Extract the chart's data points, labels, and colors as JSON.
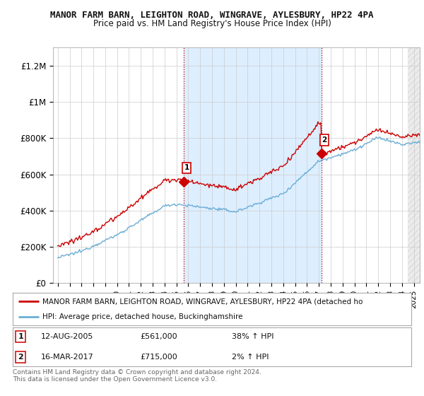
{
  "title": "MANOR FARM BARN, LEIGHTON ROAD, WINGRAVE, AYLESBURY, HP22 4PA",
  "subtitle": "Price paid vs. HM Land Registry's House Price Index (HPI)",
  "ylabel_ticks": [
    0,
    200000,
    400000,
    600000,
    800000,
    1000000,
    1200000
  ],
  "ylabel_labels": [
    "£0",
    "£200K",
    "£400K",
    "£600K",
    "£800K",
    "£1M",
    "£1.2M"
  ],
  "ylim": [
    0,
    1300000
  ],
  "xlim_start": 1994.6,
  "xlim_end": 2025.5,
  "red_color": "#cc0000",
  "blue_color": "#6baed6",
  "shade_color": "#ddeeff",
  "point1_x": 2005.617,
  "point1_y": 561000,
  "point2_x": 2017.208,
  "point2_y": 715000,
  "legend_red_text": "MANOR FARM BARN, LEIGHTON ROAD, WINGRAVE, AYLESBURY, HP22 4PA (detached ho",
  "legend_blue_text": "HPI: Average price, detached house, Buckinghamshire",
  "annotation1_date": "12-AUG-2005",
  "annotation1_price": "£561,000",
  "annotation1_hpi": "38% ↑ HPI",
  "annotation2_date": "16-MAR-2017",
  "annotation2_price": "£715,000",
  "annotation2_hpi": "2% ↑ HPI",
  "footer": "Contains HM Land Registry data © Crown copyright and database right 2024.\nThis data is licensed under the Open Government Licence v3.0.",
  "background_color": "#ffffff",
  "grid_color": "#cccccc"
}
